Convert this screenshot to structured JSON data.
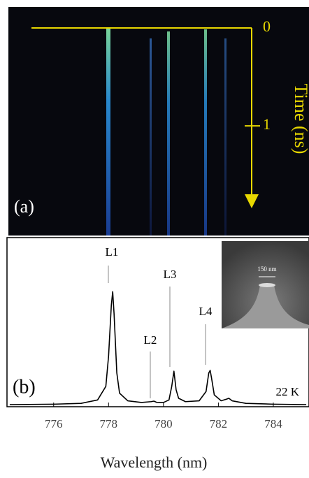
{
  "chart_data": [
    {
      "type": "streak",
      "panel_label": "(a)",
      "ylabel": "Time (ns)",
      "ylim": [
        0,
        1.82
      ],
      "yticks": [
        0,
        1
      ],
      "color": "#e8d800"
    },
    {
      "type": "line",
      "panel_label": "(b)",
      "xlabel": "Wavelength (nm)",
      "annotations": [
        "L1",
        "L2",
        "L3",
        "L4"
      ],
      "temperature_label": "22 K",
      "inset_label": "150 nm",
      "xlim": [
        774.3,
        785.3
      ],
      "xticks": [
        776,
        778,
        780,
        782,
        784
      ],
      "ylim": [
        0,
        1
      ],
      "color": "#000000",
      "x": [
        774.4,
        776,
        777,
        777.6,
        777.9,
        778,
        778.1,
        778.15,
        778.2,
        778.3,
        778.4,
        778.7,
        779.2,
        779.55,
        779.65,
        779.75,
        780,
        780.2,
        780.3,
        780.38,
        780.46,
        780.55,
        780.8,
        781.3,
        781.55,
        781.65,
        781.7,
        781.75,
        781.85,
        782.1,
        782.3,
        782.38,
        782.5,
        783,
        784,
        785.2
      ],
      "values": [
        0.012,
        0.015,
        0.02,
        0.04,
        0.12,
        0.3,
        0.6,
        0.68,
        0.55,
        0.2,
        0.08,
        0.035,
        0.025,
        0.03,
        0.033,
        0.026,
        0.025,
        0.04,
        0.12,
        0.21,
        0.1,
        0.05,
        0.03,
        0.035,
        0.09,
        0.2,
        0.215,
        0.17,
        0.07,
        0.035,
        0.045,
        0.05,
        0.035,
        0.02,
        0.015,
        0.012
      ]
    }
  ]
}
